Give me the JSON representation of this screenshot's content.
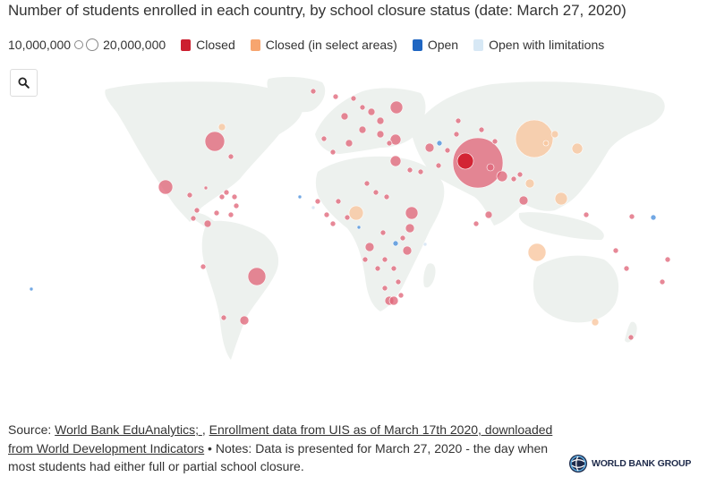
{
  "title": "Number of students enrolled in each country, by school closure status (date: March 27, 2020)",
  "legend": {
    "size_small_label": "10,000,000",
    "size_large_label": "20,000,000",
    "categories": [
      {
        "label": "Closed",
        "color": "#cc1f2f"
      },
      {
        "label": "Closed (in select areas)",
        "color": "#f7a56f"
      },
      {
        "label": "Open",
        "color": "#1f66c2"
      },
      {
        "label": "Open with limitations",
        "color": "#d7e8f5"
      }
    ]
  },
  "search_icon": "search-icon",
  "colors": {
    "land": "#edf1ee",
    "closed": "#e0677a",
    "closed_select": "#f9c59e",
    "open": "#4a8fdc",
    "open_limited": "#cfe2f2",
    "india_highlight": "#d21f2e"
  },
  "footer": {
    "source_prefix": "Source: ",
    "link1": "World Bank EduAnalytics; ",
    "sep1": ", ",
    "link2": "Enrollment data from UIS as of March 17th 2020, downloaded from World Development Indicators",
    "notes": " • Notes: Data is presented for March 27, 2020 - the day when most students had either full or partial school closure."
  },
  "logo": {
    "icon": "globe-icon",
    "text": "WORLD BANK GROUP"
  }
}
